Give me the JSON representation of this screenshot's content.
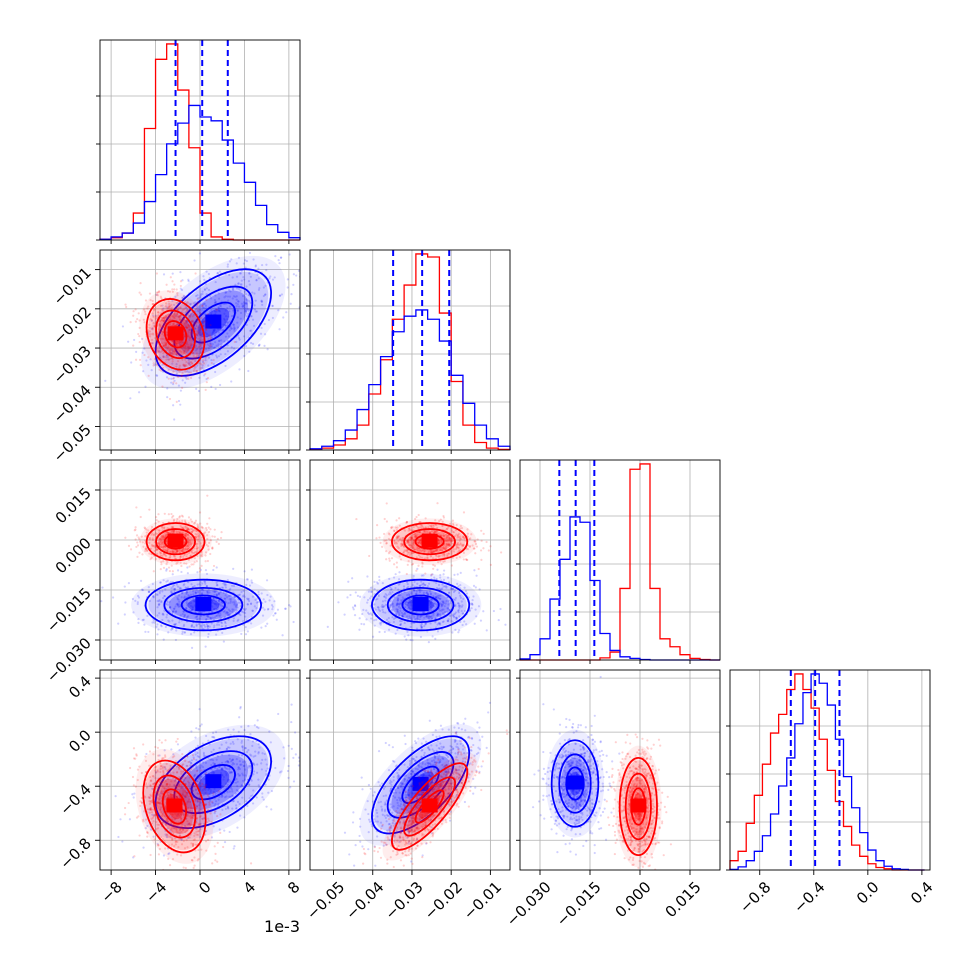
{
  "chart_data": {
    "type": "corner",
    "colors": {
      "series_a": "#0000ff",
      "series_b": "#ff0000",
      "grid": "#b0b0b0"
    },
    "grid": true,
    "parameters": [
      {
        "index": 0,
        "range": [
          -9.0,
          9.0
        ],
        "scale_label": "1e-3",
        "ticks": [
          -8,
          -4,
          0,
          4,
          8
        ],
        "tick_labels": [
          "−8",
          "−4",
          "0",
          "4",
          "8"
        ],
        "quantiles": [
          -2.2,
          0.2,
          2.5
        ],
        "hist_blue": {
          "bins": [
            -9,
            -8,
            -7,
            -6,
            -5,
            -4,
            -3,
            -2,
            -1,
            0,
            1,
            2,
            3,
            4,
            5,
            6,
            7,
            8,
            9
          ],
          "counts": [
            0.1,
            0.4,
            0.9,
            2.2,
            5,
            8.5,
            12.5,
            15.2,
            17.5,
            16,
            15.5,
            13,
            10,
            7.5,
            4.5,
            2,
            1,
            0.3
          ]
        },
        "hist_red": {
          "bins": [
            -9,
            -8,
            -7,
            -6,
            -5,
            -4,
            -3,
            -2,
            -1,
            0,
            1,
            2,
            3,
            4,
            5,
            6,
            7,
            8,
            9
          ],
          "counts": [
            0.1,
            0.3,
            0.9,
            3.5,
            14.5,
            23.5,
            25.5,
            19.5,
            12,
            3.5,
            0.4,
            0.1,
            0,
            0,
            0,
            0,
            0,
            0
          ]
        }
      },
      {
        "index": 1,
        "range": [
          -0.056,
          -0.005
        ],
        "ticks": [
          -0.05,
          -0.04,
          -0.03,
          -0.02,
          -0.01
        ],
        "tick_labels": [
          "−0.05",
          "−0.04",
          "−0.03",
          "−0.02",
          "−0.01"
        ],
        "quantiles": [
          -0.0348,
          -0.0274,
          -0.0205
        ],
        "hist_blue": {
          "bins": [
            -0.056,
            -0.053,
            -0.05,
            -0.047,
            -0.044,
            -0.041,
            -0.038,
            -0.035,
            -0.032,
            -0.029,
            -0.026,
            -0.023,
            -0.02,
            -0.017,
            -0.014,
            -0.011,
            -0.008,
            -0.005
          ],
          "counts": [
            0.2,
            0.6,
            1.5,
            3.2,
            6.5,
            10.5,
            15,
            19,
            21.5,
            22.5,
            21,
            17.5,
            12,
            7.5,
            4,
            1.8,
            0.6
          ]
        },
        "hist_red": {
          "bins": [
            -0.056,
            -0.053,
            -0.05,
            -0.047,
            -0.044,
            -0.041,
            -0.038,
            -0.035,
            -0.032,
            -0.029,
            -0.026,
            -0.023,
            -0.02,
            -0.017,
            -0.014,
            -0.011,
            -0.008,
            -0.005
          ],
          "counts": [
            0.1,
            0.3,
            0.8,
            1.8,
            4,
            9,
            14.5,
            21,
            26.5,
            31.5,
            31,
            22,
            11,
            4,
            1.2,
            0.3,
            0.1
          ]
        }
      },
      {
        "index": 2,
        "range": [
          -0.036,
          0.024
        ],
        "ticks": [
          -0.03,
          -0.015,
          0.0,
          0.015
        ],
        "tick_labels": [
          "−0.030",
          "−0.015",
          "0.000",
          "0.015"
        ],
        "quantiles": [
          -0.0242,
          -0.0193,
          -0.0137
        ],
        "hist_blue": {
          "bins": [
            -0.036,
            -0.033,
            -0.03,
            -0.027,
            -0.024,
            -0.021,
            -0.018,
            -0.015,
            -0.012,
            -0.009,
            -0.006,
            -0.003,
            0.0,
            0.003,
            0.006,
            0.009,
            0.012,
            0.015,
            0.018,
            0.021,
            0.024
          ],
          "counts": [
            0.2,
            1,
            4,
            11.5,
            19,
            27,
            26,
            15,
            5,
            1.8,
            0.6,
            0.3,
            0.1,
            0,
            0,
            0,
            0,
            0,
            0,
            0
          ]
        },
        "hist_red": {
          "bins": [
            -0.036,
            -0.033,
            -0.03,
            -0.027,
            -0.024,
            -0.021,
            -0.018,
            -0.015,
            -0.012,
            -0.009,
            -0.006,
            -0.003,
            0.0,
            0.003,
            0.006,
            0.009,
            0.012,
            0.015,
            0.018,
            0.021,
            0.024
          ],
          "counts": [
            0,
            0,
            0,
            0,
            0,
            0,
            0,
            0,
            0.4,
            1.5,
            13.5,
            36,
            37,
            13.5,
            4,
            2.5,
            1,
            0.3,
            0.1,
            0
          ]
        }
      },
      {
        "index": 3,
        "range": [
          -1.02,
          0.46
        ],
        "ticks": [
          -0.8,
          -0.4,
          0.0,
          0.4
        ],
        "tick_labels": [
          "−0.8",
          "−0.4",
          "0.0",
          "0.4"
        ],
        "quantiles": [
          -0.57,
          -0.39,
          -0.21
        ],
        "hist_blue": {
          "bins": [
            -1.02,
            -0.96,
            -0.9,
            -0.84,
            -0.78,
            -0.72,
            -0.66,
            -0.6,
            -0.54,
            -0.48,
            -0.42,
            -0.36,
            -0.3,
            -0.24,
            -0.18,
            -0.12,
            -0.06,
            0.0,
            0.06,
            0.12,
            0.18,
            0.24,
            0.3,
            0.36,
            0.42
          ],
          "counts": [
            0.1,
            0.5,
            1.5,
            3,
            5.5,
            9,
            13.5,
            18,
            23.5,
            28.5,
            31.5,
            30,
            26.5,
            21,
            15,
            10,
            6,
            3.2,
            1.5,
            0.6,
            0.2,
            0.1,
            0,
            0
          ]
        },
        "hist_red": {
          "bins": [
            -1.02,
            -0.96,
            -0.9,
            -0.84,
            -0.78,
            -0.72,
            -0.66,
            -0.6,
            -0.54,
            -0.48,
            -0.42,
            -0.36,
            -0.3,
            -0.24,
            -0.18,
            -0.12,
            -0.06,
            0.0,
            0.06,
            0.12,
            0.18,
            0.24,
            0.3,
            0.36,
            0.42
          ],
          "counts": [
            1.5,
            3,
            7.5,
            12,
            17,
            22,
            25,
            29,
            31.5,
            29,
            26,
            21,
            16,
            11,
            7,
            4,
            2.2,
            1,
            0.4,
            0.2,
            0,
            0,
            0,
            0
          ]
        }
      }
    ],
    "pairs": [
      {
        "row": 1,
        "col": 0,
        "blue": {
          "center": [
            1.2,
            -0.0235
          ],
          "sigma": [
            2.6,
            0.0068
          ],
          "rho": 0.55
        },
        "red": {
          "center": [
            -2.2,
            -0.0265
          ],
          "sigma": [
            1.3,
            0.0045
          ],
          "rho": -0.2
        }
      },
      {
        "row": 2,
        "col": 0,
        "blue": {
          "center": [
            0.3,
            -0.0195
          ],
          "sigma": [
            2.6,
            0.0038
          ],
          "rho": 0.0
        },
        "red": {
          "center": [
            -2.2,
            -0.0005
          ],
          "sigma": [
            1.3,
            0.0028
          ],
          "rho": 0.0
        }
      },
      {
        "row": 2,
        "col": 1,
        "blue": {
          "center": [
            -0.0278,
            -0.0195
          ],
          "sigma": [
            0.0062,
            0.0038
          ],
          "rho": 0.0
        },
        "red": {
          "center": [
            -0.0255,
            -0.0005
          ],
          "sigma": [
            0.0048,
            0.0028
          ],
          "rho": 0.0
        }
      },
      {
        "row": 3,
        "col": 0,
        "blue": {
          "center": [
            1.2,
            -0.37
          ],
          "sigma": [
            2.6,
            0.17
          ],
          "rho": 0.45
        },
        "red": {
          "center": [
            -2.3,
            -0.55
          ],
          "sigma": [
            1.4,
            0.17
          ],
          "rho": -0.3
        }
      },
      {
        "row": 3,
        "col": 1,
        "blue": {
          "center": [
            -0.0278,
            -0.39
          ],
          "sigma": [
            0.0062,
            0.18
          ],
          "rho": 0.65
        },
        "red": {
          "center": [
            -0.0255,
            -0.55
          ],
          "sigma": [
            0.0048,
            0.16
          ],
          "rho": 0.8
        }
      },
      {
        "row": 3,
        "col": 2,
        "blue": {
          "center": [
            -0.0195,
            -0.38
          ],
          "sigma": [
            0.0035,
            0.16
          ],
          "rho": 0.0
        },
        "red": {
          "center": [
            -0.0005,
            -0.55
          ],
          "sigma": [
            0.0028,
            0.18
          ],
          "rho": 0.0
        }
      }
    ]
  }
}
